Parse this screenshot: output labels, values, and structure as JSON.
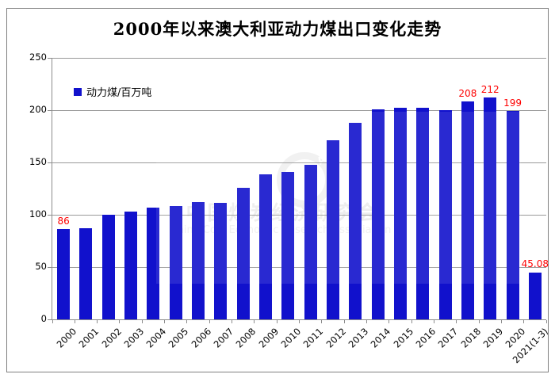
{
  "title": "2000年以来澳大利亚动力煤出口变化走势",
  "legend": {
    "label": "动力煤/百万吨"
  },
  "watermark": {
    "ring_text": "CERA",
    "line1": "中国煤炭经济研究会",
    "line2": "China Coal Economic Research Association"
  },
  "colors": {
    "bar": "#1111cc",
    "data_label": "#fe0000",
    "grid": "#9a9a9a",
    "axis": "#8c8c8c",
    "border": "#7f7f7f"
  },
  "chart_data": {
    "type": "bar",
    "title": "2000年以来澳大利亚动力煤出口变化走势",
    "series_name": "动力煤/百万吨",
    "categories": [
      "2000",
      "2001",
      "2002",
      "2003",
      "2004",
      "2005",
      "2006",
      "2007",
      "2008",
      "2009",
      "2010",
      "2011",
      "2012",
      "2013",
      "2014",
      "2015",
      "2016",
      "2017",
      "2018",
      "2019",
      "2020",
      "2021(1-3)"
    ],
    "values": [
      86,
      87,
      100,
      103,
      107,
      108,
      112,
      111,
      126,
      139,
      141,
      148,
      171,
      188,
      201,
      202,
      202,
      200,
      208,
      212,
      199,
      45.08
    ],
    "data_labels": [
      "86",
      "",
      "",
      "",
      "",
      "",
      "",
      "",
      "",
      "",
      "",
      "",
      "",
      "",
      "",
      "",
      "",
      "",
      "208",
      "212",
      "199",
      "45.08"
    ],
    "y_ticks": [
      0,
      50,
      100,
      150,
      200,
      250
    ],
    "ylim": [
      0,
      250
    ],
    "xlabel": "",
    "ylabel": "",
    "grid": true,
    "legend_position": "top-left-inside"
  }
}
